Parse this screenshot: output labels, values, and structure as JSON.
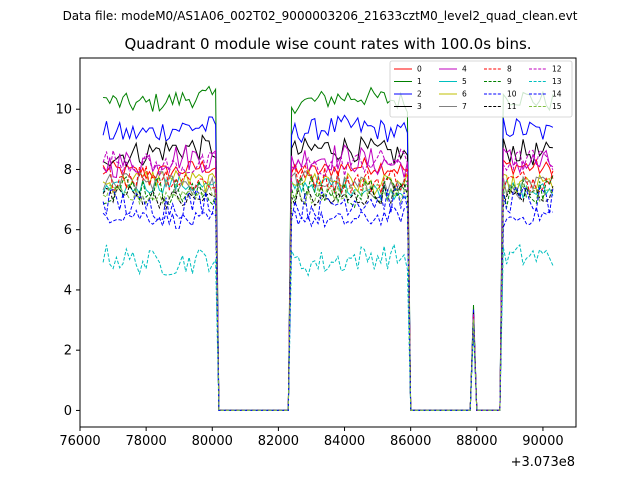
{
  "suptitle": "Data file: modeM0/AS1A06_002T02_9000003206_21633cztM0_level2_quad_clean.evt",
  "chart_data": {
    "type": "line",
    "title": "Quadrant 0 module wise count rates with 100.0s bins.",
    "xlabel": "",
    "ylabel": "",
    "x_offset_label": "+3.073e8",
    "xlim": [
      76000,
      91000
    ],
    "ylim": [
      -0.55,
      11.7
    ],
    "x_ticks": [
      76000,
      78000,
      80000,
      82000,
      84000,
      86000,
      88000,
      90000
    ],
    "x_tick_labels": [
      "76000",
      "78000",
      "80000",
      "82000",
      "84000",
      "86000",
      "88000",
      "90000"
    ],
    "y_ticks": [
      0,
      2,
      4,
      6,
      8,
      10
    ],
    "y_tick_labels": [
      "0",
      "2",
      "4",
      "6",
      "8",
      "10"
    ],
    "legend_position": "top-right",
    "legend_columns": 4,
    "bin_size_s": 100,
    "segments": [
      {
        "kind": "on",
        "start": 76700,
        "end": 80100
      },
      {
        "kind": "off",
        "start": 80200,
        "end": 82300
      },
      {
        "kind": "on",
        "start": 82400,
        "end": 85900
      },
      {
        "kind": "off",
        "start": 86000,
        "end": 87800
      },
      {
        "kind": "flare",
        "start": 87900,
        "peak": 3.5
      },
      {
        "kind": "off",
        "start": 88000,
        "end": 88700
      },
      {
        "kind": "on",
        "start": 88800,
        "end": 90300
      }
    ],
    "series": [
      {
        "name": "0",
        "color": "#ff0000",
        "dash": "solid",
        "level": 8.0
      },
      {
        "name": "1",
        "color": "#008000",
        "dash": "solid",
        "level": 10.3
      },
      {
        "name": "2",
        "color": "#0000ff",
        "dash": "solid",
        "level": 9.3
      },
      {
        "name": "3",
        "color": "#000000",
        "dash": "solid",
        "level": 8.6
      },
      {
        "name": "4",
        "color": "#bf00bf",
        "dash": "solid",
        "level": 8.3
      },
      {
        "name": "5",
        "color": "#00bfbf",
        "dash": "solid",
        "level": 7.4
      },
      {
        "name": "6",
        "color": "#bfbf00",
        "dash": "solid",
        "level": 7.6
      },
      {
        "name": "7",
        "color": "#808080",
        "dash": "solid",
        "level": 7.5
      },
      {
        "name": "8",
        "color": "#ff0000",
        "dash": "dashed",
        "level": 7.7
      },
      {
        "name": "9",
        "color": "#008000",
        "dash": "dashed",
        "level": 7.3
      },
      {
        "name": "10",
        "color": "#0000ff",
        "dash": "dashed",
        "level": 6.4
      },
      {
        "name": "11",
        "color": "#000000",
        "dash": "dashed",
        "level": 7.1
      },
      {
        "name": "12",
        "color": "#bf00bf",
        "dash": "dashed",
        "level": 8.2
      },
      {
        "name": "13",
        "color": "#00bfbf",
        "dash": "dashed",
        "level": 5.0
      },
      {
        "name": "14",
        "color": "#0000ff",
        "dash": "dashed",
        "level": 6.9
      },
      {
        "name": "15",
        "color": "#80bf40",
        "dash": "dashed",
        "level": 7.2
      }
    ]
  }
}
